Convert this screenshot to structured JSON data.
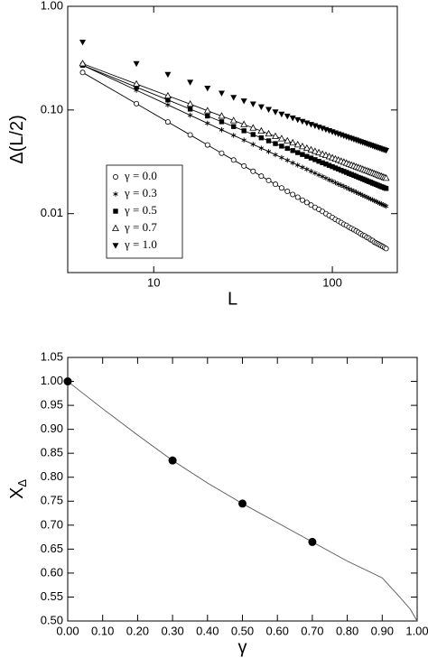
{
  "chart_data": [
    {
      "type": "scatter",
      "xlabel": "L",
      "ylabel": "Δ(L/2)",
      "xlog": true,
      "ylog": true,
      "xlim": [
        3.3,
        231
      ],
      "ylim": [
        0.0027,
        1
      ],
      "xticks": [
        10,
        100
      ],
      "yticks": [
        {
          "value": 1,
          "label": "1.00"
        },
        {
          "value": 0.1,
          "label": "0.10"
        },
        {
          "value": 0.01,
          "label": "0.01"
        }
      ],
      "legend": "lower left",
      "x": [
        4,
        8,
        12,
        16,
        20,
        24,
        28,
        32,
        36,
        40,
        44,
        48,
        52,
        56,
        60,
        64,
        68,
        72,
        76,
        80,
        84,
        88,
        92,
        96,
        100,
        104,
        108,
        112,
        116,
        120,
        124,
        128,
        132,
        136,
        140,
        144,
        148,
        152,
        156,
        160,
        164,
        168,
        172,
        176,
        180,
        184,
        188,
        192,
        196,
        200
      ],
      "series": [
        {
          "name": "γ = 0.0",
          "color": "#000000",
          "marker": "circle-open",
          "line": true,
          "values": [
            0.23,
            0.115,
            0.0767,
            0.0575,
            0.046,
            0.0383,
            0.0329,
            0.0288,
            0.0256,
            0.023,
            0.0209,
            0.0192,
            0.0177,
            0.0164,
            0.0153,
            0.0144,
            0.0135,
            0.0128,
            0.0121,
            0.0115,
            0.011,
            0.0105,
            0.01,
            0.0096,
            0.0092,
            0.0088,
            0.0085,
            0.0082,
            0.0079,
            0.0077,
            0.0074,
            0.0072,
            0.007,
            0.0068,
            0.0066,
            0.0064,
            0.0062,
            0.0061,
            0.0059,
            0.0058,
            0.0056,
            0.0055,
            0.0053,
            0.0052,
            0.0051,
            0.005,
            0.0049,
            0.0048,
            0.0047,
            0.0046
          ]
        },
        {
          "name": "γ = 0.3",
          "color": "#000000",
          "marker": "star",
          "line": true,
          "values": [
            0.27,
            0.155,
            0.112,
            0.089,
            0.0745,
            0.0644,
            0.0569,
            0.0512,
            0.0466,
            0.0428,
            0.0397,
            0.037,
            0.0347,
            0.0327,
            0.0309,
            0.0294,
            0.028,
            0.0268,
            0.0256,
            0.0246,
            0.0236,
            0.0228,
            0.022,
            0.0212,
            0.0206,
            0.0199,
            0.0193,
            0.0188,
            0.0183,
            0.0178,
            0.0173,
            0.0169,
            0.0165,
            0.0161,
            0.0157,
            0.0154,
            0.015,
            0.0147,
            0.0144,
            0.0141,
            0.0138,
            0.0136,
            0.0133,
            0.0131,
            0.0128,
            0.0126,
            0.0124,
            0.0122,
            0.012,
            0.0118
          ]
        },
        {
          "name": "γ = 0.5",
          "color": "#000000",
          "marker": "square",
          "line": true,
          "values": [
            0.27,
            0.166,
            0.125,
            0.102,
            0.0875,
            0.077,
            0.0692,
            0.063,
            0.058,
            0.0539,
            0.0504,
            0.0474,
            0.0448,
            0.0426,
            0.0406,
            0.0388,
            0.0372,
            0.0357,
            0.0344,
            0.0332,
            0.032,
            0.031,
            0.0301,
            0.0292,
            0.0284,
            0.0276,
            0.0269,
            0.0262,
            0.0256,
            0.025,
            0.0244,
            0.0239,
            0.0234,
            0.0229,
            0.0224,
            0.022,
            0.0216,
            0.0212,
            0.0208,
            0.0204,
            0.0201,
            0.0197,
            0.0194,
            0.0191,
            0.0188,
            0.0185,
            0.0182,
            0.018,
            0.0177,
            0.0175
          ]
        },
        {
          "name": "γ = 0.7",
          "color": "#000000",
          "marker": "triangle-open",
          "line": true,
          "values": [
            0.28,
            0.178,
            0.137,
            0.114,
            0.0984,
            0.0874,
            0.079,
            0.0725,
            0.0671,
            0.0627,
            0.0589,
            0.0557,
            0.0529,
            0.0504,
            0.0482,
            0.0462,
            0.0444,
            0.0428,
            0.0413,
            0.0399,
            0.0387,
            0.0375,
            0.0365,
            0.0355,
            0.0346,
            0.0337,
            0.0329,
            0.0321,
            0.0314,
            0.0307,
            0.03,
            0.0294,
            0.0289,
            0.0283,
            0.0278,
            0.0273,
            0.0268,
            0.0263,
            0.0259,
            0.0255,
            0.0251,
            0.0247,
            0.0243,
            0.0239,
            0.0236,
            0.0232,
            0.0229,
            0.0226,
            0.0223,
            0.022
          ]
        },
        {
          "name": "γ = 1.0",
          "color": "#000000",
          "marker": "triangle-down",
          "line": false,
          "values": [
            0.45,
            0.28,
            0.22,
            0.185,
            0.162,
            0.145,
            0.132,
            0.122,
            0.114,
            0.107,
            0.101,
            0.0956,
            0.0911,
            0.0871,
            0.0836,
            0.0804,
            0.0775,
            0.0749,
            0.0725,
            0.0704,
            0.0683,
            0.0665,
            0.0647,
            0.0631,
            0.0615,
            0.0601,
            0.0587,
            0.0575,
            0.0563,
            0.0551,
            0.0541,
            0.0531,
            0.0521,
            0.0512,
            0.0503,
            0.0494,
            0.0486,
            0.0479,
            0.0471,
            0.0464,
            0.0457,
            0.0451,
            0.0444,
            0.0438,
            0.0432,
            0.0427,
            0.0421,
            0.0416,
            0.0411,
            0.0406
          ]
        }
      ]
    },
    {
      "type": "scatter",
      "xlabel": "γ",
      "ylabel": "X",
      "ylabel_subscript": "Δ",
      "xlog": false,
      "ylog": false,
      "xlim": [
        0,
        1
      ],
      "ylim": [
        0.5,
        1.05
      ],
      "xticks": [
        {
          "value": 0,
          "label": "0.00"
        },
        {
          "value": 0.1,
          "label": "0.10"
        },
        {
          "value": 0.2,
          "label": "0.20"
        },
        {
          "value": 0.3,
          "label": "0.30"
        },
        {
          "value": 0.4,
          "label": "0.40"
        },
        {
          "value": 0.5,
          "label": "0.50"
        },
        {
          "value": 0.6,
          "label": "0.60"
        },
        {
          "value": 0.7,
          "label": "0.70"
        },
        {
          "value": 0.8,
          "label": "0.80"
        },
        {
          "value": 0.9,
          "label": "0.90"
        },
        {
          "value": 1,
          "label": "1.00"
        }
      ],
      "yticks": [
        {
          "value": 0.5,
          "label": "0.50"
        },
        {
          "value": 0.55,
          "label": "0.55"
        },
        {
          "value": 0.6,
          "label": "0.60"
        },
        {
          "value": 0.65,
          "label": "0.65"
        },
        {
          "value": 0.7,
          "label": "0.70"
        },
        {
          "value": 0.75,
          "label": "0.75"
        },
        {
          "value": 0.8,
          "label": "0.80"
        },
        {
          "value": 0.85,
          "label": "0.85"
        },
        {
          "value": 0.9,
          "label": "0.90"
        },
        {
          "value": 0.95,
          "label": "0.95"
        },
        {
          "value": 1,
          "label": "1.00"
        },
        {
          "value": 1.05,
          "label": "1.05"
        }
      ],
      "series": [
        {
          "color": "#555555",
          "marker": null,
          "line": true,
          "x": [
            0,
            0.1,
            0.2,
            0.3,
            0.4,
            0.5,
            0.6,
            0.7,
            0.8,
            0.9,
            0.95,
            0.98,
            1.0
          ],
          "values": [
            1.0,
            0.943,
            0.888,
            0.835,
            0.788,
            0.745,
            0.705,
            0.665,
            0.625,
            0.59,
            0.55,
            0.525,
            0.5
          ]
        },
        {
          "color": "#000000",
          "marker": "dot",
          "line": false,
          "x": [
            0,
            0.3,
            0.5,
            0.7
          ],
          "values": [
            1.0,
            0.835,
            0.745,
            0.665
          ]
        }
      ]
    }
  ]
}
